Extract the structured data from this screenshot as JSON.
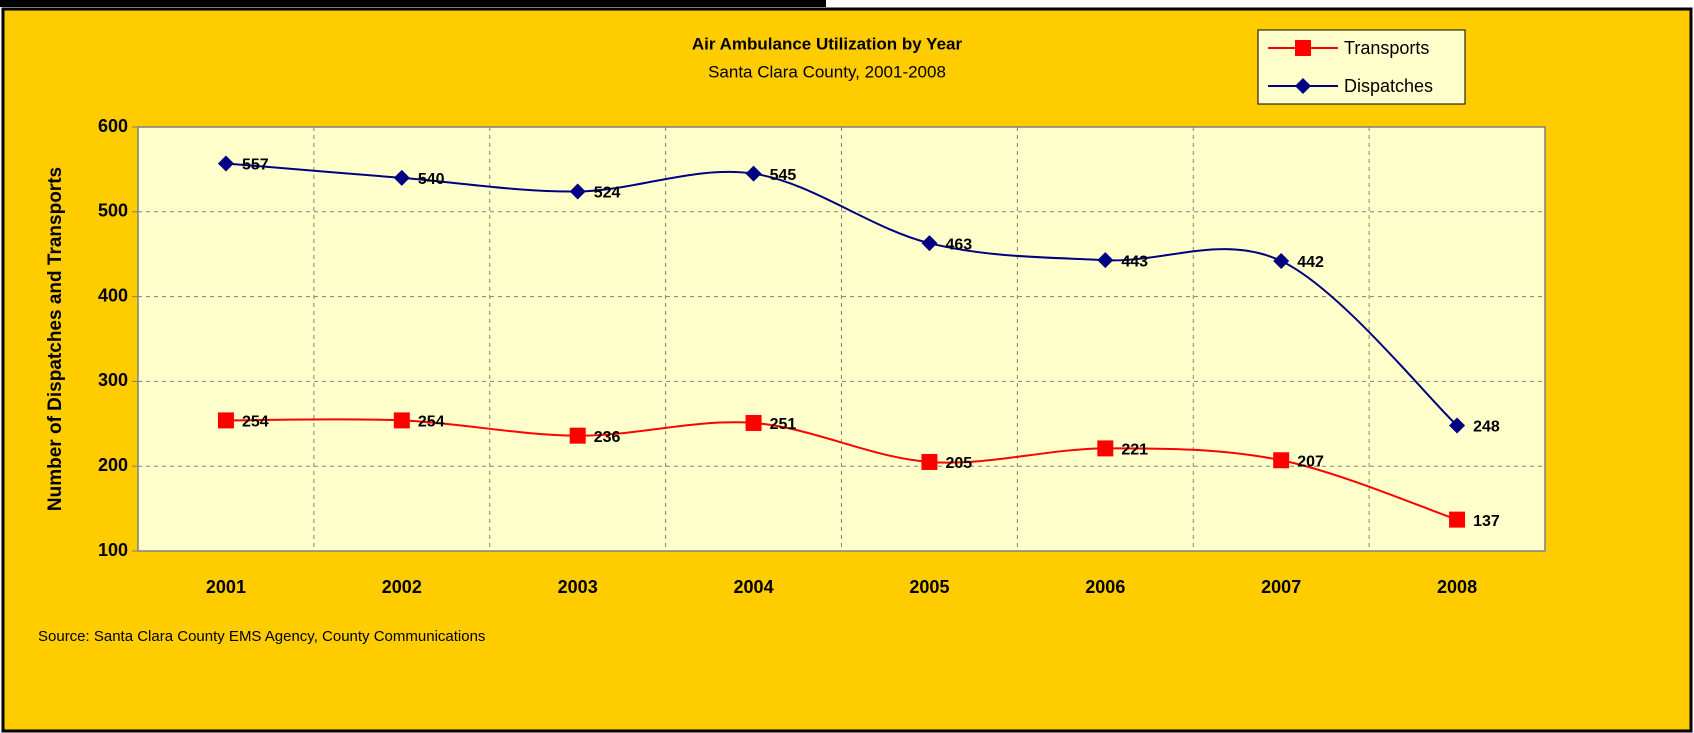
{
  "chart_data": {
    "type": "line",
    "title": "Air Ambulance Utilization by Year",
    "subtitle": "Santa Clara County, 2001-2008",
    "y_label": "Number of Dispatches and Transports",
    "source": "Source:  Santa Clara County EMS Agency, County Communications",
    "categories": [
      "2001",
      "2002",
      "2003",
      "2004",
      "2005",
      "2006",
      "2007",
      "2008"
    ],
    "series": [
      {
        "name": "Transports",
        "color": "#ff0000",
        "marker": "square",
        "values": [
          254,
          254,
          236,
          251,
          205,
          221,
          207,
          137
        ]
      },
      {
        "name": "Dispatches",
        "color": "#000080",
        "marker": "diamond",
        "values": [
          557,
          540,
          524,
          545,
          463,
          443,
          442,
          248
        ]
      }
    ],
    "ylim": [
      100,
      600
    ],
    "yticks": [
      100,
      200,
      300,
      400,
      500,
      600
    ],
    "grid": true,
    "smooth": true,
    "legend": "top-right"
  }
}
